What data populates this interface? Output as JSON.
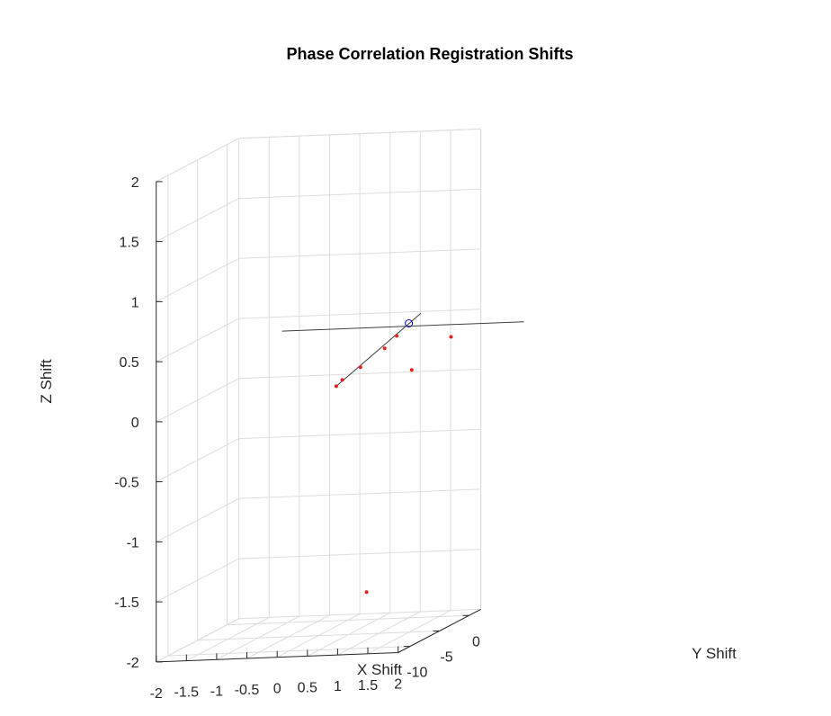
{
  "chart_data": {
    "type": "scatter3d",
    "title": "Phase Correlation Registration Shifts",
    "xlabel": "X Shift",
    "ylabel": "Y Shift",
    "zlabel": "Z Shift",
    "xlim": [
      -2,
      2
    ],
    "ylim": [
      -12,
      2
    ],
    "zlim": [
      -2,
      2
    ],
    "grid": true,
    "x_ticks": [
      -2,
      -1.5,
      -1,
      -0.5,
      0,
      0.5,
      1,
      1.5,
      2
    ],
    "x_tick_labels": [
      "-2",
      "-1.5",
      "-1",
      "-0.5",
      "0",
      "0.5",
      "1",
      "1.5",
      "2"
    ],
    "y_ticks": [
      -10,
      -5,
      0
    ],
    "y_tick_labels": [
      "-10",
      "-5",
      "0"
    ],
    "z_ticks": [
      -2,
      -1.5,
      -1,
      -0.5,
      0,
      0.5,
      1,
      1.5,
      2
    ],
    "z_tick_labels": [
      "-2",
      "-1.5",
      "-1",
      "-0.5",
      "0",
      "0.5",
      "1",
      "1.5",
      "2"
    ],
    "points": [
      {
        "x": 0.0,
        "y": -2.0,
        "z": 0.0
      },
      {
        "x": 0.1,
        "y": -2.0,
        "z": 0.05
      },
      {
        "x": 0.4,
        "y": -2.0,
        "z": 0.15
      },
      {
        "x": 0.8,
        "y": -2.0,
        "z": 0.3
      },
      {
        "x": 1.0,
        "y": -2.0,
        "z": 0.4
      },
      {
        "x": 1.2,
        "y": -1.5,
        "z": 0.1
      },
      {
        "x": 1.8,
        "y": -1.0,
        "z": 0.35
      },
      {
        "x": 0.6,
        "y": -3.0,
        "z": -1.7
      }
    ],
    "highlight_point": {
      "x": 1.2,
      "y": -2.0,
      "z": 0.5
    },
    "lines": [
      {
        "from": {
          "x": 0.0,
          "y": -2.0,
          "z": 0.0
        },
        "to": {
          "x": 1.4,
          "y": -2.0,
          "z": 0.58
        }
      },
      {
        "from": {
          "x": -0.8,
          "y": -3.0,
          "z": 0.5
        },
        "to": {
          "x": 3.2,
          "y": -3.0,
          "z": 0.5
        }
      }
    ],
    "colors": {
      "points": "#e8201a",
      "highlight": "#0000cc",
      "lines": "#404040",
      "grid": "#dcdcdc",
      "axis": "#262626"
    }
  }
}
